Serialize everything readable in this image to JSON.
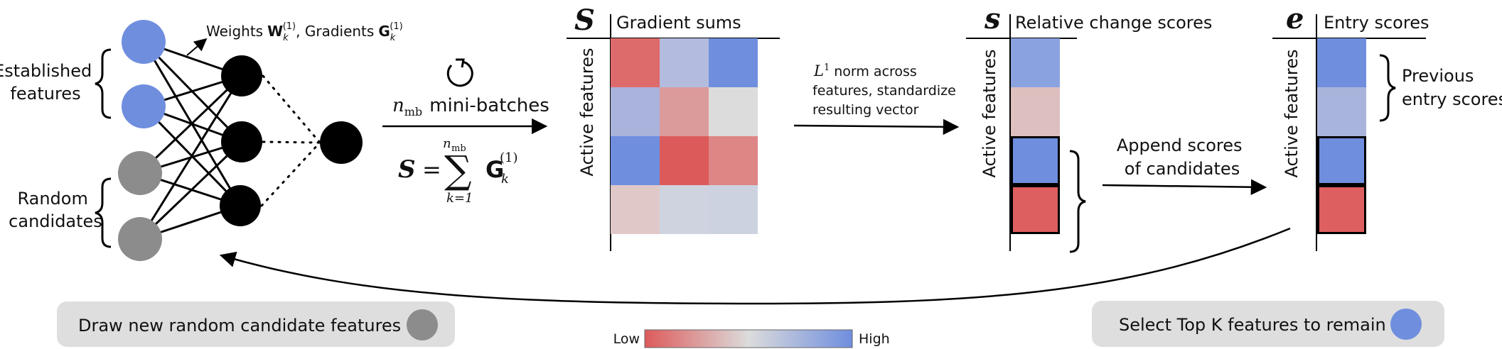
{
  "network": {
    "label_established": [
      "Established",
      "features"
    ],
    "label_random": [
      "Random",
      "candidates"
    ],
    "weights_prefix": "Weights",
    "weights_symbol": "W",
    "gradients_prefix": "Gradients",
    "gradients_symbol": "G",
    "sub_k": "k",
    "sup_1": "(1)"
  },
  "step1": {
    "minibatch_symbol": "n",
    "minibatch_sub": "mb",
    "minibatch_text": "mini-batches",
    "formula_lhs": "S",
    "formula_eq": "=",
    "sum_symbol": "∑",
    "sum_upper": "n",
    "sum_upper_sub": "mb",
    "sum_lower": "k=1",
    "formula_term": "G",
    "formula_sub": "k",
    "formula_sup": "(1)"
  },
  "panel_S": {
    "symbol": "S",
    "title": "Gradient sums",
    "axis_label": "Active features",
    "cells": [
      [
        "#de6b6b",
        "#b3bcde",
        "#6f8ede"
      ],
      [
        "#aab3dc",
        "#dc9b9b",
        "#dcdcdc"
      ],
      [
        "#6f8ede",
        "#dd5a5a",
        "#de8585"
      ],
      [
        "#e1c8c8",
        "#cfd3df",
        "#cdd2e0"
      ]
    ]
  },
  "step2": {
    "norm_symbol": "L",
    "norm_sup": "1",
    "lines": [
      "norm across",
      "features, standardize",
      "resulting vector"
    ]
  },
  "panel_s": {
    "symbol": "s",
    "title": "Relative change scores",
    "axis_label": "Active features",
    "cells": [
      "#8ba2e0",
      "#ddbfbf",
      "#6f8ede",
      "#de5f5f"
    ]
  },
  "step3": {
    "lines": [
      "Append scores",
      "of candidates"
    ]
  },
  "panel_e": {
    "symbol": "e",
    "title": "Entry scores",
    "axis_label": "Active features",
    "cells": [
      "#6f8ede",
      "#a8b4dc",
      "#6f8ede",
      "#de5f5f"
    ],
    "previous_label": [
      "Previous",
      "entry scores"
    ]
  },
  "legend": {
    "low": "Low",
    "high": "High",
    "color_low": "#dd5a5a",
    "color_mid": "#dcdcdc",
    "color_high": "#6f8ede"
  },
  "pills": {
    "left_text": "Draw new random candidate features",
    "right_text": "Select Top K features to remain"
  },
  "colors": {
    "blue": "#6f8ede",
    "gray": "#8c8c8c",
    "black": "#000000",
    "pill_bg": "#dedede"
  },
  "icons": {
    "refresh": "refresh-cycle-icon"
  }
}
